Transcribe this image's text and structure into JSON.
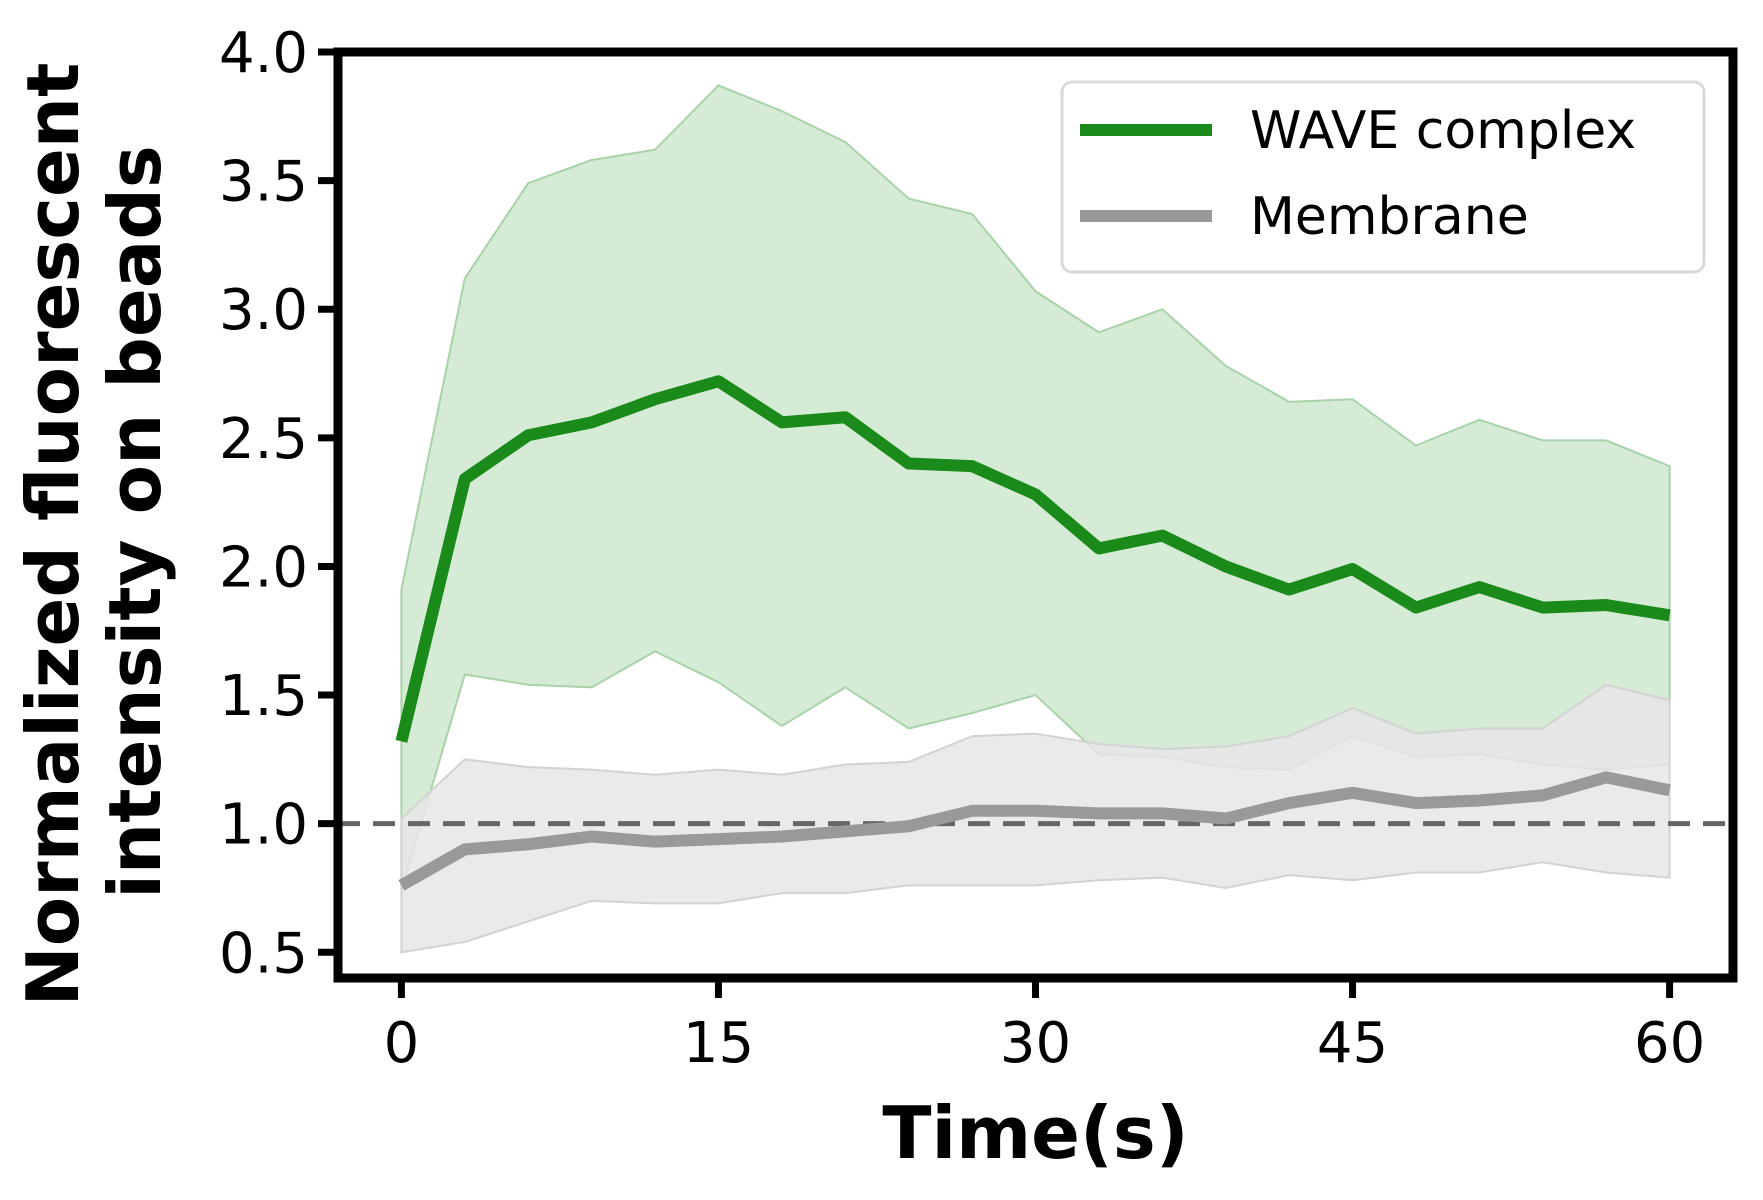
{
  "chart_data": {
    "type": "line",
    "title": "",
    "xlabel": "Time(s)",
    "ylabel_lines": [
      "Normalized fluorescent",
      "intensity on beads"
    ],
    "xlim": [
      -3,
      63
    ],
    "ylim": [
      0.4,
      4.0
    ],
    "xticks": [
      0,
      15,
      30,
      45,
      60
    ],
    "yticks": [
      0.5,
      1.0,
      1.5,
      2.0,
      2.5,
      3.0,
      3.5,
      4.0
    ],
    "x": [
      0,
      3,
      6,
      9,
      12,
      15,
      18,
      21,
      24,
      27,
      30,
      33,
      36,
      39,
      42,
      45,
      48,
      51,
      54,
      57,
      60
    ],
    "reference_line": {
      "y": 1.0,
      "style": "dashed",
      "color": "#666666"
    },
    "series": [
      {
        "name": "WAVE complex",
        "color": "#1a8a1a",
        "band_color": "#cfe7cf",
        "band_edge_color": "#a8d2a8",
        "values": [
          1.32,
          2.34,
          2.51,
          2.56,
          2.65,
          2.72,
          2.56,
          2.58,
          2.4,
          2.39,
          2.28,
          2.07,
          2.12,
          2.0,
          1.91,
          1.99,
          1.84,
          1.92,
          1.84,
          1.85,
          1.81
        ],
        "upper": [
          1.91,
          3.12,
          3.49,
          3.58,
          3.62,
          3.87,
          3.77,
          3.65,
          3.43,
          3.37,
          3.07,
          2.91,
          3.0,
          2.78,
          2.64,
          2.65,
          2.47,
          2.57,
          2.49,
          2.49,
          2.39
        ],
        "lower": [
          0.74,
          1.58,
          1.54,
          1.53,
          1.67,
          1.55,
          1.38,
          1.53,
          1.37,
          1.43,
          1.5,
          1.27,
          1.26,
          1.22,
          1.21,
          1.34,
          1.26,
          1.27,
          1.23,
          1.21,
          1.23
        ]
      },
      {
        "name": "Membrane",
        "color": "#999999",
        "band_color": "#e6e6e6",
        "band_edge_color": "#d2d2d2",
        "values": [
          0.76,
          0.9,
          0.92,
          0.95,
          0.93,
          0.94,
          0.95,
          0.97,
          0.99,
          1.05,
          1.05,
          1.04,
          1.04,
          1.02,
          1.08,
          1.12,
          1.08,
          1.09,
          1.11,
          1.18,
          1.13
        ],
        "upper": [
          1.02,
          1.25,
          1.22,
          1.21,
          1.19,
          1.21,
          1.19,
          1.23,
          1.24,
          1.34,
          1.35,
          1.31,
          1.29,
          1.3,
          1.34,
          1.45,
          1.35,
          1.37,
          1.37,
          1.54,
          1.48
        ],
        "lower": [
          0.5,
          0.54,
          0.62,
          0.7,
          0.69,
          0.69,
          0.73,
          0.73,
          0.76,
          0.76,
          0.76,
          0.78,
          0.79,
          0.75,
          0.8,
          0.78,
          0.81,
          0.81,
          0.85,
          0.81,
          0.79
        ]
      }
    ],
    "legend": {
      "placement": "top-right",
      "frame_color": "#d9d9d9"
    }
  }
}
